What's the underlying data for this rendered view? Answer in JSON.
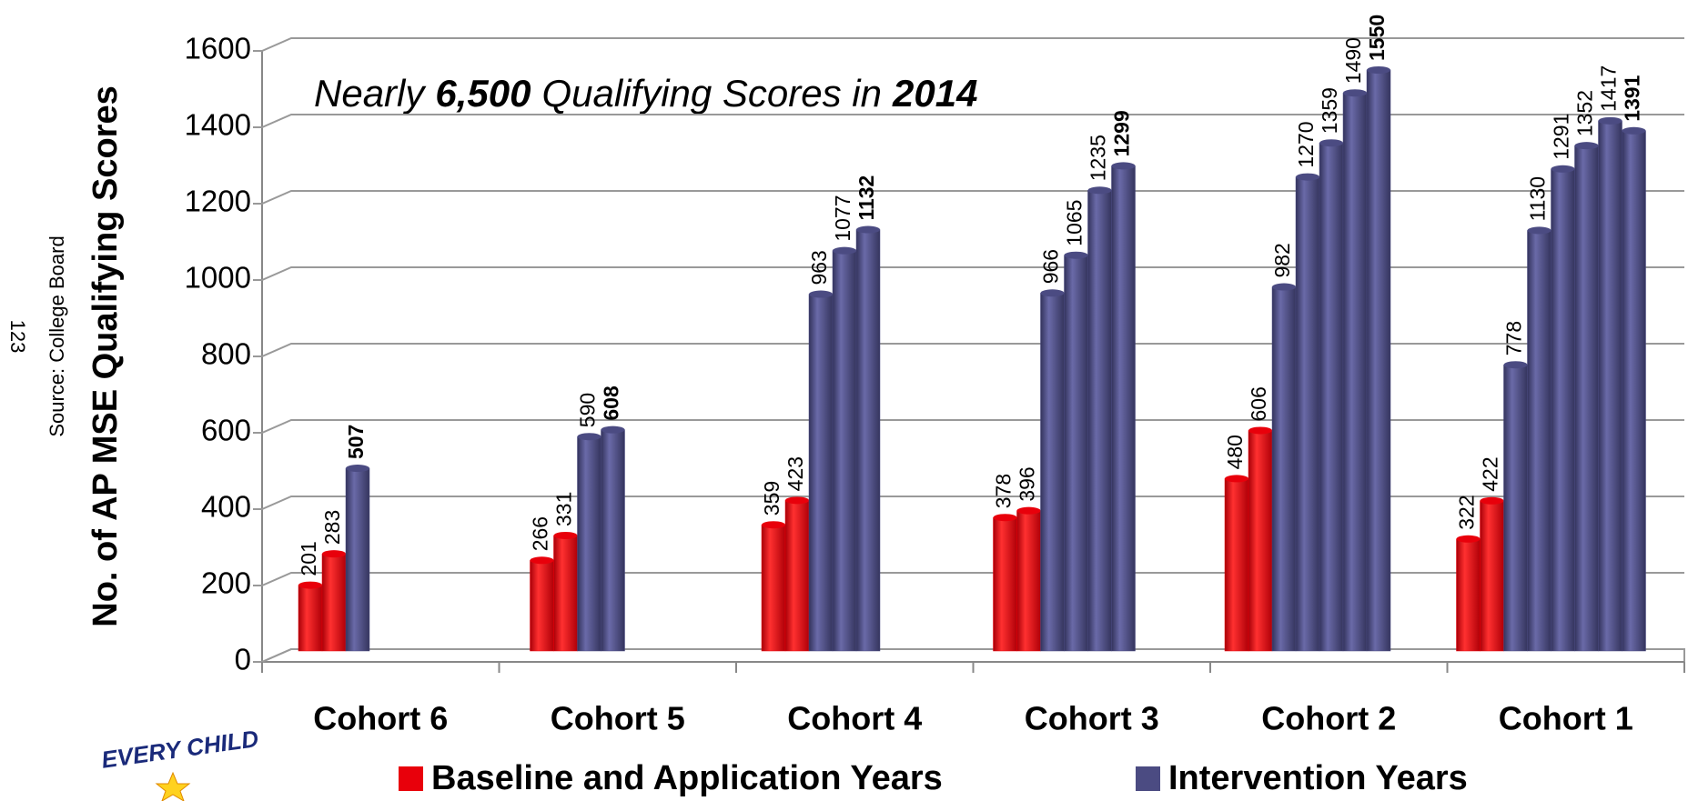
{
  "chart_data": {
    "type": "grouped_bar",
    "annotation": [
      "Nearly",
      "6,500",
      "Qualifying Scores in",
      "2014"
    ],
    "y_label": "No. of AP MSE Qualifying Scores",
    "source": "Source: College Board",
    "page_number": "123",
    "logo_text": "EVERY CHILD",
    "categories": [
      "Cohort 6",
      "Cohort 5",
      "Cohort 4",
      "Cohort 3",
      "Cohort 2",
      "Cohort 1"
    ],
    "series": [
      {
        "name": "Baseline and Application Years",
        "color": "#e8000b",
        "values": [
          [
            201,
            283
          ],
          [
            266,
            331
          ],
          [
            359,
            423
          ],
          [
            378,
            396
          ],
          [
            480,
            606
          ],
          [
            322,
            422
          ]
        ]
      },
      {
        "name": "Intervention Years",
        "color": "#4b4b82",
        "values": [
          [
            507
          ],
          [
            590,
            608
          ],
          [
            963,
            1077,
            1132
          ],
          [
            966,
            1065,
            1235,
            1299
          ],
          [
            982,
            1270,
            1359,
            1490,
            1550
          ],
          [
            778,
            1130,
            1291,
            1352,
            1417,
            1391
          ]
        ]
      }
    ],
    "ylim": [
      0,
      1600
    ],
    "yticks": [
      0,
      200,
      400,
      600,
      800,
      1000,
      1200,
      1400,
      1600
    ],
    "grid": true
  }
}
